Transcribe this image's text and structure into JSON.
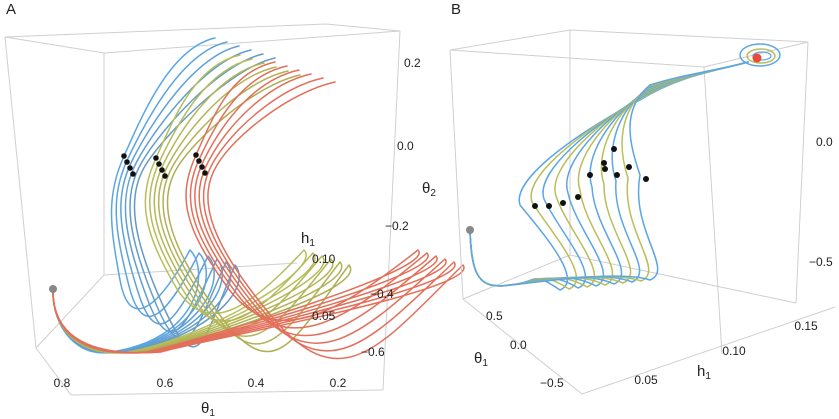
{
  "chart_data": [
    {
      "type": "line",
      "panel": "A",
      "title": "",
      "axes": {
        "theta1": {
          "label": "θ",
          "subscript": "1",
          "ticks": [
            "0.8",
            "0.6",
            "0.4",
            "0.2"
          ]
        },
        "h1": {
          "label": "h",
          "subscript": "1",
          "ticks": [
            "0.10",
            "0.05"
          ]
        },
        "theta2": {
          "label": "θ",
          "subscript": "2",
          "ticks": [
            "0.2",
            "0.0",
            "−0.2",
            "−0.4",
            "−0.6"
          ]
        }
      },
      "series": [
        {
          "name": "blue trajectories",
          "color": "#5aa6e6",
          "count": 6
        },
        {
          "name": "yellow trajectories",
          "color": "#b9be5a",
          "count": 6
        },
        {
          "name": "red trajectories",
          "color": "#e36f5a",
          "count": 6
        }
      ],
      "markers": {
        "start": {
          "color": "#888888"
        },
        "points": {
          "color": "#111111",
          "count": 12
        }
      }
    },
    {
      "type": "line",
      "panel": "B",
      "title": "",
      "axes": {
        "theta1": {
          "label": "θ",
          "subscript": "1",
          "ticks": [
            "0.5",
            "0.0",
            "−0.5"
          ]
        },
        "h1": {
          "label": "h",
          "subscript": "1",
          "ticks": [
            "0.05",
            "0.10",
            "0.15"
          ]
        },
        "theta2": {
          "label": "θ",
          "subscript": "2",
          "ticks": [
            "0.0",
            "−0.5"
          ]
        }
      },
      "series": [
        {
          "name": "blue trajectories",
          "color": "#5aa6e6",
          "count": 6
        },
        {
          "name": "yellow trajectories",
          "color": "#b9be5a",
          "count": 5
        }
      ],
      "markers": {
        "start": {
          "color": "#888888"
        },
        "end": {
          "color": "#e84b3c"
        },
        "points": {
          "color": "#111111",
          "count": 11
        }
      }
    }
  ]
}
